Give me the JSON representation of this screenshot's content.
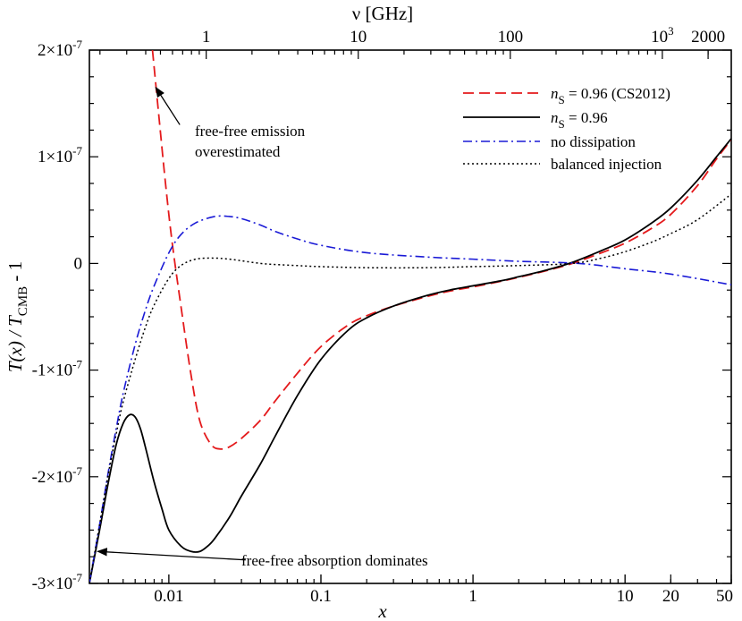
{
  "chart_data": {
    "type": "line",
    "title": "",
    "xlabel": "x",
    "ylabel_main": "T(x) / T",
    "ylabel_sub": "CMB",
    "ylabel_tail": " - 1",
    "top_axis_label": "ν  [GHz]",
    "x_scale": "log",
    "xlim": [
      0.003,
      50
    ],
    "ylim": [
      -3e-07,
      2e-07
    ],
    "x_ticks": [
      {
        "value": 0.01,
        "label": "0.01"
      },
      {
        "value": 0.1,
        "label": "0.1"
      },
      {
        "value": 1,
        "label": "1"
      },
      {
        "value": 10,
        "label": "10"
      },
      {
        "value": 20,
        "label": "20"
      },
      {
        "value": 50,
        "label": "50"
      }
    ],
    "top_ticks": [
      {
        "x": 0.0176,
        "label": "1"
      },
      {
        "x": 0.176,
        "label": "10"
      },
      {
        "x": 1.76,
        "label": "100"
      }
    ],
    "top_tick_1000": {
      "x": 17.6,
      "base": "10",
      "exp": "3"
    },
    "top_tick_2000": {
      "x": 35.2,
      "label": "2000"
    },
    "y_ticks": [
      {
        "value": 2e-07,
        "mant": "2×10",
        "exp": "-7"
      },
      {
        "value": 1e-07,
        "mant": "1×10",
        "exp": "-7"
      },
      {
        "value": 0,
        "mant": "0",
        "exp": ""
      },
      {
        "value": -1e-07,
        "mant": "-1×10",
        "exp": "-7"
      },
      {
        "value": -2e-07,
        "mant": "-2×10",
        "exp": "-7"
      },
      {
        "value": -3e-07,
        "mant": "-3×10",
        "exp": "-7"
      }
    ],
    "series": [
      {
        "name_prefix": "n",
        "name_sub": "S",
        "name_suffix": " = 0.96 (CS2012)",
        "color": "#e41a1c",
        "dash": "12,6",
        "width": 1.8,
        "x": [
          0.0078,
          0.0085,
          0.0095,
          0.0105,
          0.012,
          0.014,
          0.016,
          0.019,
          0.022,
          0.025,
          0.03,
          0.04,
          0.05,
          0.07,
          0.1,
          0.15,
          0.2,
          0.3,
          0.5,
          0.7,
          1.0,
          1.5,
          2,
          3,
          4.5,
          7,
          10,
          15,
          20,
          30,
          40,
          50
        ],
        "y": [
          2e-07,
          1.45e-07,
          7.5e-08,
          2e-08,
          -4e-08,
          -1.05e-07,
          -1.48e-07,
          -1.7e-07,
          -1.74e-07,
          -1.72e-07,
          -1.64e-07,
          -1.47e-07,
          -1.29e-07,
          -1.03e-07,
          -7.8e-08,
          -5.8e-08,
          -4.9e-08,
          -4e-08,
          -3.1e-08,
          -2.6e-08,
          -2.2e-08,
          -1.7e-08,
          -1.3e-08,
          -7e-09,
          0.0,
          1e-08,
          1.9e-08,
          3.3e-08,
          4.6e-08,
          7.3e-08,
          9.8e-08,
          1.16e-07
        ]
      },
      {
        "name_prefix": "n",
        "name_sub": "S",
        "name_suffix": " = 0.96",
        "color": "#000000",
        "dash": "",
        "width": 1.8,
        "x": [
          0.003,
          0.0035,
          0.004,
          0.0045,
          0.005,
          0.0055,
          0.006,
          0.0065,
          0.007,
          0.008,
          0.009,
          0.01,
          0.012,
          0.014,
          0.016,
          0.018,
          0.02,
          0.025,
          0.03,
          0.04,
          0.05,
          0.07,
          0.1,
          0.15,
          0.2,
          0.3,
          0.5,
          0.7,
          1.0,
          1.5,
          2,
          3,
          4.5,
          7,
          10,
          15,
          20,
          30,
          40,
          50
        ],
        "y": [
          -3e-07,
          -2.5e-07,
          -2.05e-07,
          -1.7e-07,
          -1.5e-07,
          -1.42e-07,
          -1.44e-07,
          -1.55e-07,
          -1.72e-07,
          -2.05e-07,
          -2.3e-07,
          -2.5e-07,
          -2.65e-07,
          -2.7e-07,
          -2.7e-07,
          -2.65e-07,
          -2.58e-07,
          -2.38e-07,
          -2.18e-07,
          -1.88e-07,
          -1.62e-07,
          -1.24e-07,
          -9e-08,
          -6.3e-08,
          -5.1e-08,
          -4e-08,
          -3e-08,
          -2.5e-08,
          -2.1e-08,
          -1.65e-08,
          -1.25e-08,
          -6.5e-09,
          1e-09,
          1.2e-08,
          2.2e-08,
          3.8e-08,
          5.2e-08,
          7.8e-08,
          1e-07,
          1.17e-07
        ]
      },
      {
        "name_prefix": "",
        "name_sub": "",
        "name_suffix": "no dissipation",
        "color": "#1a1ad6",
        "dash": "10,4,2,4",
        "width": 1.6,
        "x": [
          0.003,
          0.0035,
          0.004,
          0.0045,
          0.005,
          0.006,
          0.007,
          0.008,
          0.01,
          0.012,
          0.015,
          0.02,
          0.025,
          0.03,
          0.04,
          0.05,
          0.07,
          0.1,
          0.2,
          0.5,
          1,
          2,
          5,
          10,
          20,
          50
        ],
        "y": [
          -3e-07,
          -2.45e-07,
          -1.95e-07,
          -1.55e-07,
          -1.22e-07,
          -7.6e-08,
          -4.4e-08,
          -2.1e-08,
          1e-08,
          2.7e-08,
          3.8e-08,
          4.4e-08,
          4.4e-08,
          4.2e-08,
          3.6e-08,
          3e-08,
          2.3e-08,
          1.7e-08,
          1e-08,
          6e-09,
          4e-09,
          2e-09,
          0.0,
          -5e-09,
          -1e-08,
          -2e-08
        ]
      },
      {
        "name_prefix": "",
        "name_sub": "",
        "name_suffix": "balanced injection",
        "color": "#000000",
        "dash": "2,3",
        "width": 1.5,
        "x": [
          0.003,
          0.0035,
          0.004,
          0.0045,
          0.005,
          0.006,
          0.007,
          0.008,
          0.01,
          0.012,
          0.015,
          0.02,
          0.025,
          0.03,
          0.04,
          0.05,
          0.07,
          0.1,
          0.2,
          0.5,
          1,
          2,
          4.5,
          7,
          10,
          15,
          20,
          30,
          50
        ],
        "y": [
          -3e-07,
          -2.45e-07,
          -1.97e-07,
          -1.6e-07,
          -1.3e-07,
          -9e-08,
          -6e-08,
          -3.9e-08,
          -1.4e-08,
          -2e-09,
          4e-09,
          5e-09,
          4e-09,
          2.5e-09,
          0.0,
          -1e-09,
          -2e-09,
          -3e-09,
          -4e-09,
          -4e-09,
          -3e-09,
          -2e-09,
          0.0,
          5e-09,
          1.1e-08,
          2e-08,
          2.8e-08,
          4.1e-08,
          6.5e-08
        ]
      }
    ],
    "legend_position": "top-right",
    "annotations": [
      {
        "lines": [
          "free-free emission",
          "overestimated"
        ],
        "arrow_from": [
          0.0118,
          1.3e-07
        ],
        "arrow_to": [
          0.0082,
          1.65e-07
        ]
      },
      {
        "lines": [
          "free-free absorption dominates"
        ],
        "arrow_from": [
          0.032,
          -2.78e-07
        ],
        "arrow_to": [
          0.0034,
          -2.7e-07
        ]
      }
    ]
  }
}
